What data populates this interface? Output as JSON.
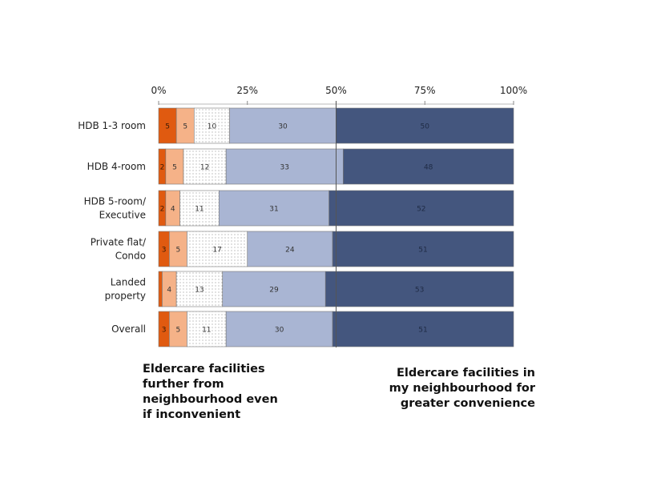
{
  "chart_data": {
    "type": "bar",
    "orientation": "horizontal",
    "stacked": true,
    "xlim": [
      0,
      100
    ],
    "x_ticks": [
      "0%",
      "25%",
      "50%",
      "75%",
      "100%"
    ],
    "categories": [
      [
        "HDB 1-3 room"
      ],
      [
        "HDB 4-room"
      ],
      [
        "HDB 5-room/",
        "Executive"
      ],
      [
        "Private flat/",
        "Condo"
      ],
      [
        "Landed",
        "property"
      ],
      [
        "Overall"
      ]
    ],
    "series": [
      {
        "values": [
          5,
          2,
          2,
          3,
          1,
          3
        ],
        "labels": [
          "5",
          "2",
          "2",
          "3",
          "",
          "3"
        ],
        "color": "#e05a10",
        "pattern": "solid"
      },
      {
        "values": [
          5,
          5,
          4,
          5,
          4,
          5
        ],
        "labels": [
          "5",
          "5",
          "4",
          "5",
          "4",
          "5"
        ],
        "color": "#f5b288",
        "pattern": "solid"
      },
      {
        "values": [
          10,
          12,
          11,
          17,
          13,
          11
        ],
        "labels": [
          "10",
          "12",
          "11",
          "17",
          "13",
          "11"
        ],
        "color": "#ffffff",
        "pattern": "dotted"
      },
      {
        "values": [
          30,
          33,
          31,
          24,
          29,
          30
        ],
        "labels": [
          "30",
          "33",
          "31",
          "24",
          "29",
          "30"
        ],
        "color": "#a9b5d3",
        "pattern": "solid"
      },
      {
        "values": [
          50,
          48,
          52,
          51,
          53,
          51
        ],
        "labels": [
          "50",
          "48",
          "52",
          "51",
          "53",
          "51"
        ],
        "color": "#44567e",
        "pattern": "solid"
      }
    ],
    "reference_line": 50,
    "annotations": {
      "left": [
        "Eldercare facilities",
        "further from",
        "neighbourhood even",
        "if inconvenient"
      ],
      "right": [
        "Eldercare facilities in",
        "my neighbourhood for",
        "greater convenience"
      ]
    }
  }
}
